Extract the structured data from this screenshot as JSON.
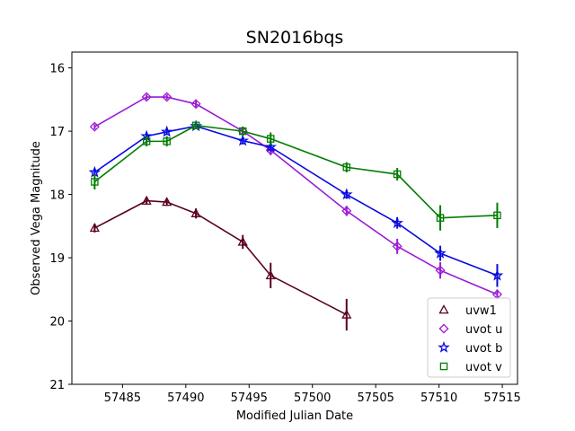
{
  "chart_data": {
    "type": "line",
    "title": "SN2016bqs",
    "xlabel": "Modified Julian Date",
    "ylabel": "Observed Vega Magnitude",
    "xlim": [
      57481.0,
      57516.2
    ],
    "ylim": [
      21,
      15.75
    ],
    "y_inverted": true,
    "xticks": [
      57485,
      57490,
      57495,
      57500,
      57505,
      57510,
      57515
    ],
    "yticks": [
      16,
      17,
      18,
      19,
      20,
      21
    ],
    "grid": false,
    "legend_position": "lower-right",
    "series": [
      {
        "name": "uvw1",
        "color": "#5a0020",
        "marker": "triangle",
        "x": [
          57482.8,
          57486.9,
          57488.5,
          57490.8,
          57494.5,
          57496.7,
          57502.7
        ],
        "y": [
          18.53,
          18.1,
          18.12,
          18.3,
          18.75,
          19.28,
          19.9
        ],
        "yerr": [
          0.07,
          0.06,
          0.06,
          0.08,
          0.11,
          0.2,
          0.25
        ]
      },
      {
        "name": "uvot u",
        "color": "#9b1ad6",
        "marker": "diamond",
        "x": [
          57482.8,
          57486.9,
          57488.5,
          57490.8,
          57494.5,
          57496.7,
          57502.7,
          57506.7,
          57510.1,
          57514.6
        ],
        "y": [
          16.93,
          16.46,
          16.46,
          16.57,
          17.0,
          17.3,
          18.26,
          18.82,
          19.2,
          19.58
        ],
        "yerr": [
          0.04,
          0.04,
          0.04,
          0.05,
          0.06,
          0.08,
          0.08,
          0.12,
          0.13,
          0.08
        ]
      },
      {
        "name": "uvot b",
        "color": "#0a0ae0",
        "marker": "star",
        "x": [
          57482.8,
          57486.9,
          57488.5,
          57490.8,
          57494.5,
          57496.7,
          57502.7,
          57506.7,
          57510.1,
          57514.6
        ],
        "y": [
          17.65,
          17.08,
          17.01,
          16.92,
          17.15,
          17.25,
          18.0,
          18.45,
          18.93,
          19.28
        ],
        "yerr": [
          0.06,
          0.05,
          0.05,
          0.05,
          0.06,
          0.07,
          0.07,
          0.09,
          0.12,
          0.18
        ]
      },
      {
        "name": "uvot v",
        "color": "#007d00",
        "marker": "square",
        "x": [
          57482.8,
          57486.9,
          57488.5,
          57490.8,
          57494.5,
          57496.7,
          57502.7,
          57506.7,
          57510.1,
          57514.6
        ],
        "y": [
          17.8,
          17.16,
          17.16,
          16.91,
          17.0,
          17.12,
          17.57,
          17.68,
          18.37,
          18.33
        ],
        "yerr": [
          0.12,
          0.08,
          0.08,
          0.06,
          0.07,
          0.1,
          0.08,
          0.1,
          0.2,
          0.2
        ]
      }
    ]
  }
}
